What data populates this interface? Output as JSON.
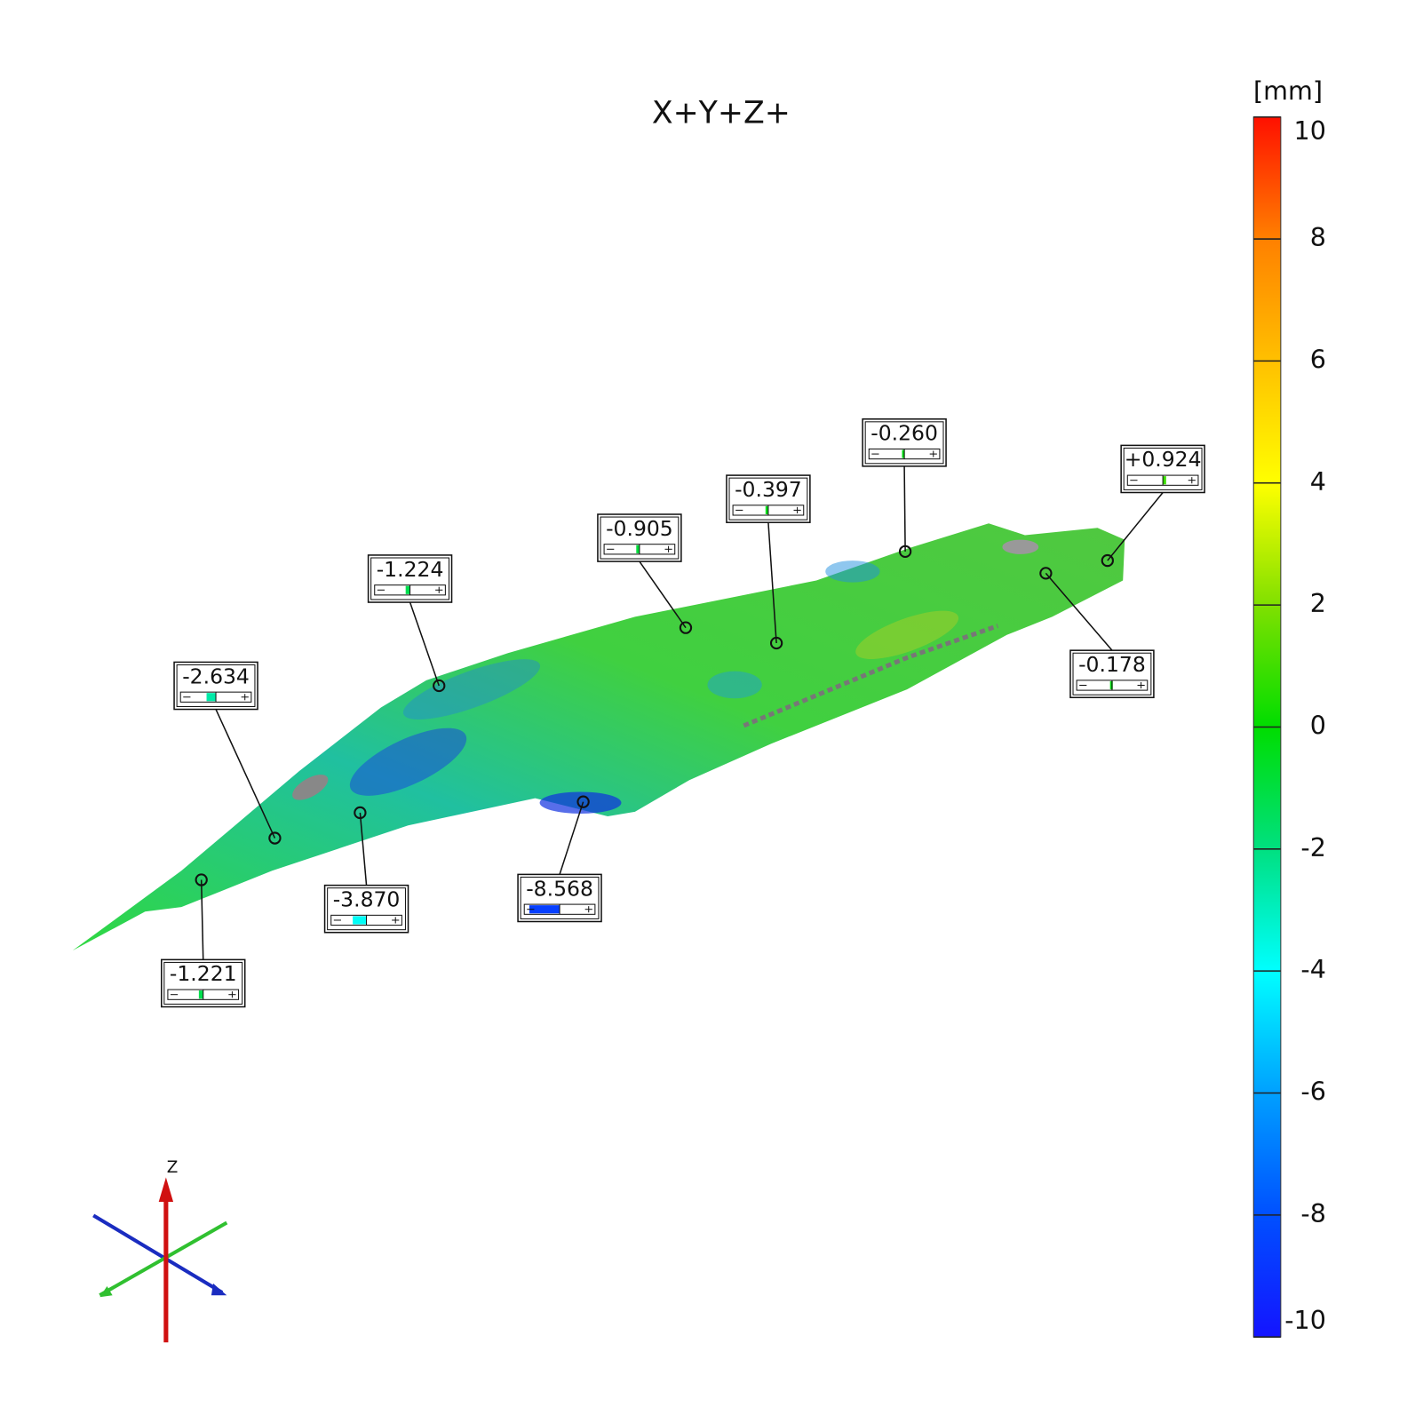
{
  "title": "X+Y+Z+",
  "colorbar": {
    "unit": "[mm]",
    "lim": [
      -10,
      10
    ],
    "ticks": [
      10,
      8,
      6,
      4,
      2,
      0,
      -2,
      -4,
      -6,
      -8,
      -10
    ],
    "colors": [
      "#1414ff",
      "#0050ff",
      "#00a0ff",
      "#00ffff",
      "#00e080",
      "#00dd00",
      "#80e000",
      "#ffff00",
      "#ffc000",
      "#ff8000",
      "#ff1000"
    ]
  },
  "annotations": [
    {
      "value": -1.221,
      "label": "-1.221"
    },
    {
      "value": -2.634,
      "label": "-2.634"
    },
    {
      "value": -3.87,
      "label": "-3.870"
    },
    {
      "value": -1.224,
      "label": "-1.224"
    },
    {
      "value": -8.568,
      "label": "-8.568"
    },
    {
      "value": -0.905,
      "label": "-0.905"
    },
    {
      "value": -0.397,
      "label": "-0.397"
    },
    {
      "value": -0.26,
      "label": "-0.260"
    },
    {
      "value": 0.924,
      "label": "+0.924"
    },
    {
      "value": -0.178,
      "label": "-0.178"
    }
  ],
  "triad": {
    "z_label": "Z"
  }
}
